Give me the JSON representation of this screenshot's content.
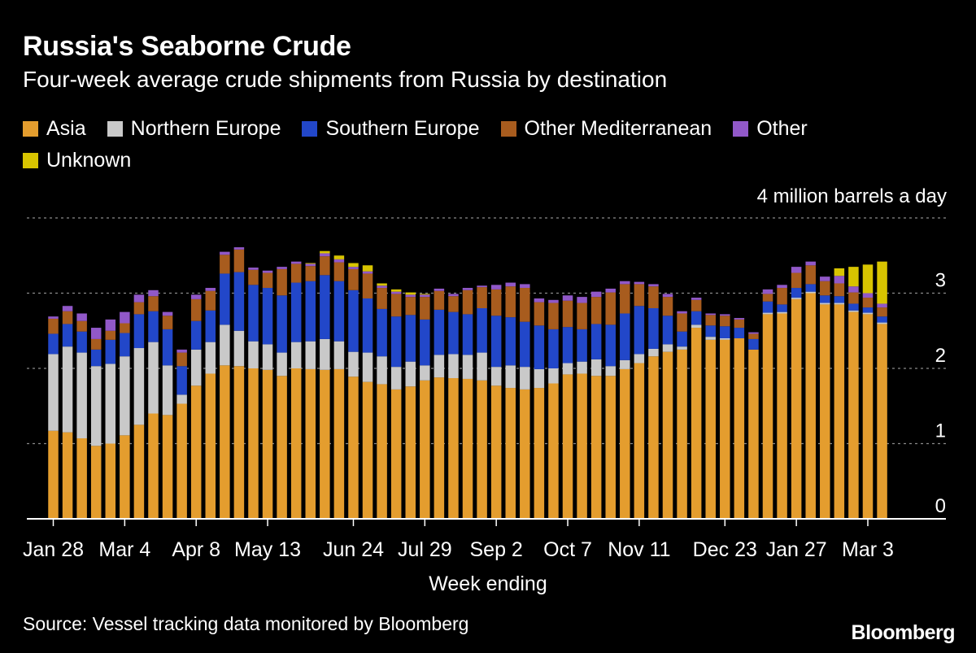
{
  "chart_data": {
    "type": "bar",
    "stacked": true,
    "title": "Russia's Seaborne Crude",
    "subtitle": "Four-week average crude shipments from Russia by destination",
    "unit_label": "4 million barrels a day",
    "xlabel": "Week ending",
    "ylim": [
      0,
      4
    ],
    "yticks": [
      "0",
      "1",
      "2",
      "3"
    ],
    "xtick_labels": [
      {
        "index": 0,
        "label": "Jan 28"
      },
      {
        "index": 5,
        "label": "Mar 4"
      },
      {
        "index": 10,
        "label": "Apr 8"
      },
      {
        "index": 15,
        "label": "May 13"
      },
      {
        "index": 21,
        "label": "Jun 24"
      },
      {
        "index": 26,
        "label": "Jul 29"
      },
      {
        "index": 31,
        "label": "Sep 2"
      },
      {
        "index": 36,
        "label": "Oct 7"
      },
      {
        "index": 41,
        "label": "Nov 11"
      },
      {
        "index": 47,
        "label": "Dec 23"
      },
      {
        "index": 52,
        "label": "Jan 27"
      },
      {
        "index": 57,
        "label": "Mar 3"
      }
    ],
    "series": [
      {
        "name": "Asia",
        "color": "#e49d2e",
        "values": [
          1.17,
          1.15,
          1.07,
          0.97,
          1.0,
          1.11,
          1.25,
          1.4,
          1.38,
          1.53,
          1.77,
          1.93,
          2.04,
          2.03,
          2.0,
          1.98,
          1.9,
          2.0,
          1.99,
          1.98,
          1.99,
          1.89,
          1.82,
          1.79,
          1.72,
          1.76,
          1.84,
          1.88,
          1.87,
          1.86,
          1.84,
          1.77,
          1.74,
          1.72,
          1.74,
          1.8,
          1.92,
          1.93,
          1.9,
          1.9,
          1.99,
          2.07,
          2.16,
          2.22,
          2.25,
          2.54,
          2.38,
          2.38,
          2.4,
          2.25,
          2.72,
          2.73,
          2.92,
          3.0,
          2.85,
          2.85,
          2.75,
          2.72,
          2.59
        ]
      },
      {
        "name": "Northern Europe",
        "color": "#c9c9c9",
        "values": [
          1.02,
          1.14,
          1.14,
          1.06,
          1.06,
          1.05,
          1.02,
          0.95,
          0.66,
          0.12,
          0.48,
          0.42,
          0.54,
          0.47,
          0.36,
          0.34,
          0.31,
          0.35,
          0.37,
          0.41,
          0.37,
          0.33,
          0.39,
          0.37,
          0.3,
          0.33,
          0.2,
          0.3,
          0.32,
          0.32,
          0.37,
          0.25,
          0.3,
          0.3,
          0.25,
          0.2,
          0.15,
          0.16,
          0.22,
          0.13,
          0.12,
          0.12,
          0.1,
          0.1,
          0.04,
          0.04,
          0.04,
          0.02,
          0.0,
          0.0,
          0.02,
          0.02,
          0.02,
          0.02,
          0.02,
          0.02,
          0.02,
          0.02,
          0.02
        ]
      },
      {
        "name": "Southern Europe",
        "color": "#2247c9",
        "values": [
          0.27,
          0.3,
          0.28,
          0.22,
          0.32,
          0.31,
          0.45,
          0.41,
          0.48,
          0.38,
          0.38,
          0.42,
          0.68,
          0.78,
          0.75,
          0.75,
          0.76,
          0.79,
          0.8,
          0.85,
          0.8,
          0.82,
          0.72,
          0.63,
          0.67,
          0.62,
          0.61,
          0.6,
          0.56,
          0.54,
          0.59,
          0.68,
          0.64,
          0.6,
          0.58,
          0.52,
          0.48,
          0.43,
          0.47,
          0.55,
          0.62,
          0.64,
          0.54,
          0.38,
          0.2,
          0.18,
          0.15,
          0.16,
          0.14,
          0.14,
          0.15,
          0.1,
          0.13,
          0.1,
          0.1,
          0.09,
          0.09,
          0.07,
          0.08
        ]
      },
      {
        "name": "Other Mediterranean",
        "color": "#a85c1e",
        "values": [
          0.2,
          0.17,
          0.14,
          0.14,
          0.12,
          0.13,
          0.16,
          0.2,
          0.18,
          0.18,
          0.29,
          0.26,
          0.25,
          0.3,
          0.2,
          0.2,
          0.35,
          0.25,
          0.2,
          0.25,
          0.25,
          0.28,
          0.33,
          0.28,
          0.3,
          0.24,
          0.3,
          0.25,
          0.21,
          0.32,
          0.28,
          0.35,
          0.41,
          0.45,
          0.31,
          0.35,
          0.35,
          0.35,
          0.36,
          0.43,
          0.39,
          0.29,
          0.29,
          0.25,
          0.24,
          0.15,
          0.14,
          0.14,
          0.11,
          0.07,
          0.1,
          0.22,
          0.2,
          0.25,
          0.19,
          0.17,
          0.15,
          0.13,
          0.12
        ]
      },
      {
        "name": "Other",
        "color": "#9158c8",
        "values": [
          0.03,
          0.07,
          0.1,
          0.15,
          0.15,
          0.15,
          0.1,
          0.08,
          0.05,
          0.04,
          0.06,
          0.04,
          0.04,
          0.03,
          0.03,
          0.03,
          0.03,
          0.03,
          0.03,
          0.04,
          0.04,
          0.03,
          0.03,
          0.03,
          0.03,
          0.03,
          0.03,
          0.03,
          0.03,
          0.03,
          0.02,
          0.06,
          0.05,
          0.05,
          0.05,
          0.04,
          0.07,
          0.08,
          0.07,
          0.05,
          0.04,
          0.03,
          0.03,
          0.04,
          0.03,
          0.03,
          0.02,
          0.02,
          0.02,
          0.02,
          0.06,
          0.04,
          0.08,
          0.05,
          0.06,
          0.1,
          0.08,
          0.06,
          0.05
        ]
      },
      {
        "name": "Unknown",
        "color": "#d8c400",
        "values": [
          0.0,
          0.0,
          0.0,
          0.0,
          0.0,
          0.0,
          0.0,
          0.0,
          0.0,
          0.0,
          0.0,
          0.0,
          0.0,
          0.0,
          0.0,
          0.0,
          0.0,
          0.0,
          0.01,
          0.03,
          0.05,
          0.05,
          0.08,
          0.03,
          0.03,
          0.03,
          0.01,
          0.0,
          0.0,
          0.0,
          0.0,
          0.0,
          0.0,
          0.0,
          0.0,
          0.0,
          0.0,
          0.0,
          0.0,
          0.0,
          0.0,
          0.0,
          0.0,
          0.0,
          0.0,
          0.0,
          0.0,
          0.0,
          0.0,
          0.0,
          0.0,
          0.0,
          0.0,
          0.0,
          0.0,
          0.1,
          0.26,
          0.38,
          0.56
        ]
      }
    ],
    "source": "Source: Vessel tracking data monitored by Bloomberg",
    "brand": "Bloomberg"
  }
}
